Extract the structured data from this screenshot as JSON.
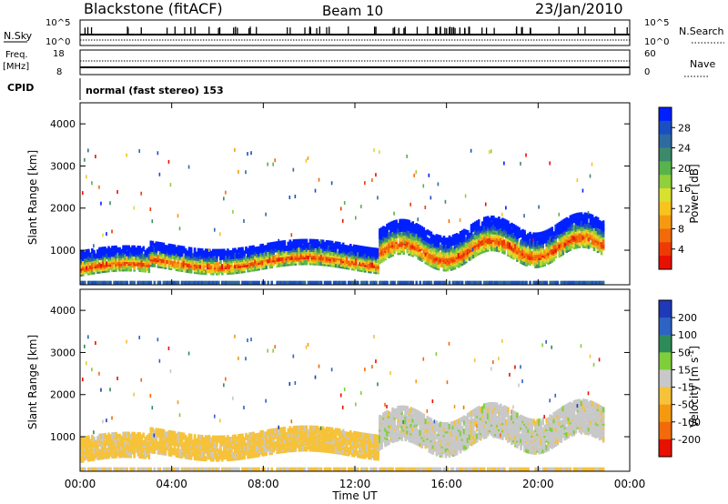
{
  "header": {
    "station": "Blackstone (fitACF)",
    "beam": "Beam 10",
    "date": "23/Jan/2010"
  },
  "top_panels": {
    "nsky_label": "N.Sky",
    "nsky_ticks": [
      "10^5",
      "10^0"
    ],
    "nsearch_label": "N.Search",
    "nsearch_ticks": [
      "10^5",
      "10^0"
    ],
    "freq_label_top": "Freq.",
    "freq_label_unit": "[MHz]",
    "freq_ticks": [
      "18",
      "8"
    ],
    "nave_label": "Nave",
    "nave_ticks": [
      "60",
      "0"
    ],
    "cpid_label": "CPID",
    "cpid_text": "normal (fast stereo) 153"
  },
  "chart_data": [
    {
      "type": "heatmap",
      "name": "power",
      "ylabel": "Slant Range [km]",
      "ylim": [
        180,
        4500
      ],
      "yticks": [
        "4000",
        "3000",
        "2000",
        "1000"
      ],
      "xlim": [
        "00:00",
        "24:00"
      ],
      "colorbar": {
        "label": "Power [dB]",
        "ticks": [
          "28",
          "24",
          "20",
          "16",
          "12",
          "8",
          "4"
        ],
        "colors": [
          "#0020ff",
          "#1a4fc4",
          "#2f6aa0",
          "#3c8a6a",
          "#58b34a",
          "#8fd03b",
          "#d8e030",
          "#f7c31d",
          "#f59a10",
          "#f26a0a",
          "#ef3a06",
          "#e81000"
        ]
      }
    },
    {
      "type": "heatmap",
      "name": "velocity",
      "ylabel": "Slant Range [km]",
      "ylim": [
        180,
        4500
      ],
      "yticks": [
        "4000",
        "3000",
        "2000",
        "1000"
      ],
      "xlabel": "Time UT",
      "xticks": [
        "00:00",
        "04:00",
        "08:00",
        "12:00",
        "16:00",
        "20:00",
        "00:00"
      ],
      "colorbar": {
        "label": "Velocity [m s",
        "label_sup": "-1",
        "label_close": "]",
        "ticks": [
          "200",
          "100",
          "50",
          "15",
          "-15",
          "-50",
          "-100",
          "-200"
        ],
        "colors": [
          "#1e3ab8",
          "#2e63c4",
          "#2e8b57",
          "#7fcf3a",
          "#c8c8c8",
          "#f6c23a",
          "#f59a10",
          "#f26a0a",
          "#e81000"
        ]
      }
    }
  ]
}
